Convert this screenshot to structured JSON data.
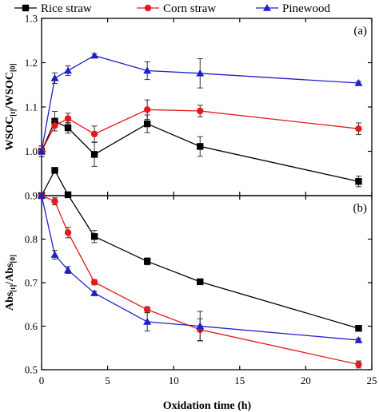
{
  "chart_data": {
    "type": "line",
    "legend": {
      "placement": "top",
      "entries": [
        "Rice straw",
        "Corn straw",
        "Pinewood"
      ]
    },
    "xlabel": "Oxidation time (h)",
    "xlim": [
      0,
      25
    ],
    "xticks": [
      "0",
      "5",
      "10",
      "15",
      "20",
      "25"
    ],
    "colors": {
      "Rice straw": "#000000",
      "Corn straw": "#e41a1c",
      "Pinewood": "#1f1fcc"
    },
    "markers": {
      "Rice straw": "square",
      "Corn straw": "circle",
      "Pinewood": "triangle"
    },
    "panels": [
      {
        "label": "(a)",
        "ylabel": "WSOC[t]/WSOC[0]",
        "ylabel_main": "WSOC",
        "ylabel_sub1": "[t]",
        "ylabel_mid": "/WSOC",
        "ylabel_sub2": "[0]",
        "ylim": [
          0.9,
          1.3
        ],
        "yticks": [
          "1.0",
          "1.1",
          "1.2",
          "1.3"
        ],
        "x": [
          0,
          1,
          2,
          4,
          8,
          12,
          24
        ],
        "series": [
          {
            "name": "Rice straw",
            "values": [
              1.0,
              1.068,
              1.053,
              0.993,
              1.062,
              1.011,
              0.932
            ],
            "errors": [
              0.012,
              0.022,
              0.012,
              0.027,
              0.02,
              0.022,
              0.012
            ]
          },
          {
            "name": "Corn straw",
            "values": [
              1.0,
              1.058,
              1.074,
              1.039,
              1.094,
              1.091,
              1.051
            ],
            "errors": [
              0.012,
              0.012,
              0.012,
              0.018,
              0.022,
              0.013,
              0.013
            ]
          },
          {
            "name": "Pinewood",
            "values": [
              1.0,
              1.165,
              1.182,
              1.216,
              1.182,
              1.176,
              1.154
            ],
            "errors": [
              0.012,
              0.012,
              0.011,
              0.004,
              0.02,
              0.033,
              0.004
            ]
          }
        ]
      },
      {
        "label": "(b)",
        "ylabel": "Abs[t]/Abs[0]",
        "ylabel_main": "Abs",
        "ylabel_sub1": "[t]",
        "ylabel_mid": "/Abs",
        "ylabel_sub2": "[0]",
        "ylim": [
          0.5,
          0.9
        ],
        "yticks": [
          "0.5",
          "0.6",
          "0.7",
          "0.8",
          "0.9"
        ],
        "x": [
          0,
          1,
          2,
          4,
          8,
          12,
          24
        ],
        "series": [
          {
            "name": "Rice straw",
            "values": [
              0.9,
              0.958,
              0.902,
              0.806,
              0.749,
              0.702,
              0.595
            ],
            "errors": [
              0.004,
              0.004,
              0.004,
              0.014,
              0.008,
              0.004,
              0.004
            ]
          },
          {
            "name": "Corn straw",
            "values": [
              0.9,
              0.887,
              0.815,
              0.701,
              0.638,
              0.592,
              0.512
            ],
            "errors": [
              0.004,
              0.008,
              0.012,
              0.006,
              0.007,
              0.025,
              0.008
            ]
          },
          {
            "name": "Pinewood",
            "values": [
              0.9,
              0.764,
              0.729,
              0.676,
              0.61,
              0.6,
              0.568
            ],
            "errors": [
              0.004,
              0.01,
              0.008,
              0.004,
              0.021,
              0.034,
              0.004
            ]
          }
        ]
      }
    ]
  }
}
